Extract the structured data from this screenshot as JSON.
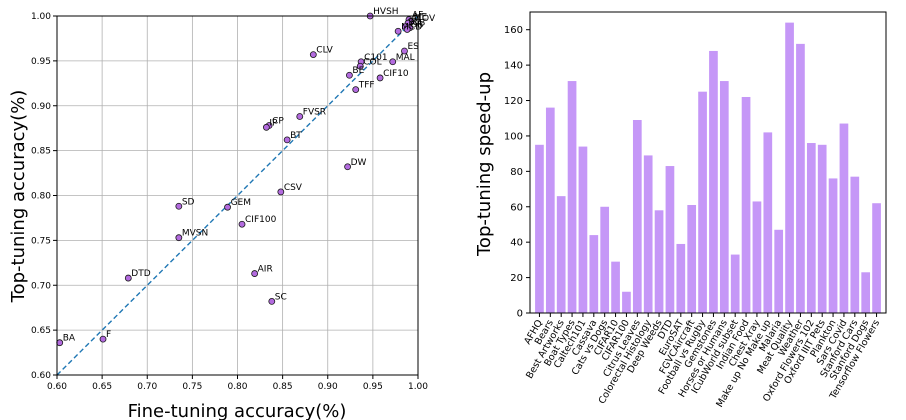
{
  "chart_data": [
    {
      "type": "scatter",
      "title": "",
      "xlabel": "Fine-tuning accuracy(%)",
      "ylabel": "Top-tuning accuracy(%)",
      "xlim": [
        0.6,
        1.0
      ],
      "ylim": [
        0.6,
        1.0
      ],
      "grid": true,
      "x_ticks": [
        "0.60",
        "0.65",
        "0.70",
        "0.75",
        "0.80",
        "0.85",
        "0.90",
        "0.95",
        "1.00"
      ],
      "y_ticks": [
        "0.60",
        "0.65",
        "0.70",
        "0.75",
        "0.80",
        "0.85",
        "0.90",
        "0.95",
        "1.00"
      ],
      "diagonal": "y = x (dashed)",
      "colors": {
        "point_fill": "#b36bdf",
        "point_edge": "#1a1a1a",
        "diagonal": "#1f77b4",
        "grid": "#b0b0b0"
      },
      "points": [
        {
          "label": "HVSH",
          "x": 0.947,
          "y": 1.0
        },
        {
          "label": "AF",
          "x": 0.99,
          "y": 0.996
        },
        {
          "label": "ME",
          "x": 0.992,
          "y": 0.994
        },
        {
          "label": "ATOV",
          "x": 0.989,
          "y": 0.992
        },
        {
          "label": "BD",
          "x": 0.986,
          "y": 0.988
        },
        {
          "label": "CB",
          "x": 0.991,
          "y": 0.987
        },
        {
          "label": "OB",
          "x": 0.988,
          "y": 0.985
        },
        {
          "label": "MCD",
          "x": 0.978,
          "y": 0.983
        },
        {
          "label": "CLV",
          "x": 0.884,
          "y": 0.957
        },
        {
          "label": "ES",
          "x": 0.985,
          "y": 0.961
        },
        {
          "label": "C101",
          "x": 0.937,
          "y": 0.949
        },
        {
          "label": "MAL",
          "x": 0.972,
          "y": 0.949
        },
        {
          "label": "COL",
          "x": 0.936,
          "y": 0.944
        },
        {
          "label": "BE",
          "x": 0.924,
          "y": 0.934
        },
        {
          "label": "CIF10",
          "x": 0.958,
          "y": 0.931
        },
        {
          "label": "TFF",
          "x": 0.931,
          "y": 0.918
        },
        {
          "label": "FVSR",
          "x": 0.869,
          "y": 0.888
        },
        {
          "label": "CP",
          "x": 0.835,
          "y": 0.878
        },
        {
          "label": "IP",
          "x": 0.832,
          "y": 0.876
        },
        {
          "label": "BT",
          "x": 0.855,
          "y": 0.862
        },
        {
          "label": "DW",
          "x": 0.922,
          "y": 0.832
        },
        {
          "label": "CSV",
          "x": 0.848,
          "y": 0.804
        },
        {
          "label": "SD",
          "x": 0.735,
          "y": 0.788
        },
        {
          "label": "GEM",
          "x": 0.789,
          "y": 0.787
        },
        {
          "label": "CIF100",
          "x": 0.805,
          "y": 0.768
        },
        {
          "label": "MVSN",
          "x": 0.735,
          "y": 0.753
        },
        {
          "label": "AIR",
          "x": 0.819,
          "y": 0.713
        },
        {
          "label": "DTD",
          "x": 0.679,
          "y": 0.708
        },
        {
          "label": "SC",
          "x": 0.838,
          "y": 0.682
        },
        {
          "label": "F",
          "x": 0.651,
          "y": 0.64
        },
        {
          "label": "BA",
          "x": 0.603,
          "y": 0.636
        }
      ]
    },
    {
      "type": "bar",
      "title": "",
      "xlabel": "",
      "ylabel": "Top-tuning speed-up",
      "ylim": [
        0,
        170
      ],
      "y_ticks": [
        "0",
        "20",
        "40",
        "60",
        "80",
        "100",
        "120",
        "140",
        "160"
      ],
      "grid": false,
      "colors": {
        "bar": "#c597f7"
      },
      "categories": [
        "AFHQ",
        "Bears",
        "Best Artworks",
        "Boat Types",
        "Caltech101",
        "Cassava",
        "Cats vs Dogs",
        "CIFAR10",
        "CIFAR100",
        "Citrus Leaves",
        "Colorectal Histology",
        "Deep Weeds",
        "DTD",
        "EuroSAT",
        "FGVCAircraft",
        "Football vs Rugby",
        "Gemstones",
        "Horses or Humans",
        "ICubWorld subset",
        "Indian Food",
        "Chest Xray",
        "Make up No Make up",
        "Malaria",
        "Meat Quality",
        "Weather",
        "Oxford Flowers 102",
        "Oxford IIIT Pets",
        "Plankton",
        "Sars Covid",
        "Stanford Cars",
        "Stanford Dogs",
        "Tensorflow Flowers"
      ],
      "values": [
        95,
        116,
        66,
        131,
        94,
        44,
        60,
        29,
        12,
        109,
        89,
        58,
        83,
        39,
        61,
        125,
        148,
        131,
        33,
        122,
        63,
        102,
        47,
        164,
        152,
        96,
        95,
        76,
        107,
        77,
        23,
        62
      ]
    }
  ]
}
